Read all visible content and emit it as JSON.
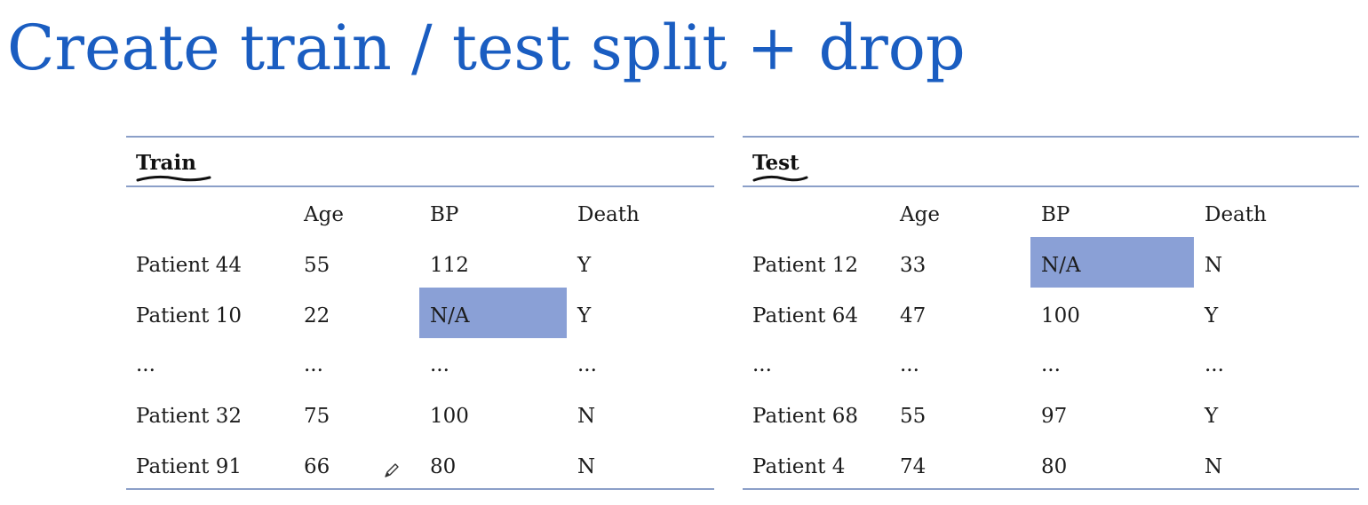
{
  "title": "Create train / test split + drop",
  "highlight_color": "#8aa0d6",
  "title_color": "#1a5dc1",
  "tables": [
    {
      "caption": "Train",
      "columns": [
        "",
        "Age",
        "BP",
        "Death"
      ],
      "rows": [
        [
          "Patient 44",
          "55",
          "112",
          "Y"
        ],
        [
          "Patient 10",
          "22",
          "N/A",
          "Y"
        ],
        [
          "...",
          "...",
          "...",
          "..."
        ],
        [
          "Patient 32",
          "75",
          "100",
          "N"
        ],
        [
          "Patient 91",
          "66",
          "80",
          "N"
        ]
      ],
      "highlighted_cells": [
        {
          "row": 1,
          "col": 2
        }
      ]
    },
    {
      "caption": "Test",
      "columns": [
        "",
        "Age",
        "BP",
        "Death"
      ],
      "rows": [
        [
          "Patient 12",
          "33",
          "N/A",
          "N"
        ],
        [
          "Patient 64",
          "47",
          "100",
          "Y"
        ],
        [
          "...",
          "...",
          "...",
          "..."
        ],
        [
          "Patient 68",
          "55",
          "97",
          "Y"
        ],
        [
          "Patient 4",
          "74",
          "80",
          "N"
        ]
      ],
      "highlighted_cells": [
        {
          "row": 0,
          "col": 2
        }
      ]
    }
  ],
  "cursor_icon": "pencil-icon"
}
